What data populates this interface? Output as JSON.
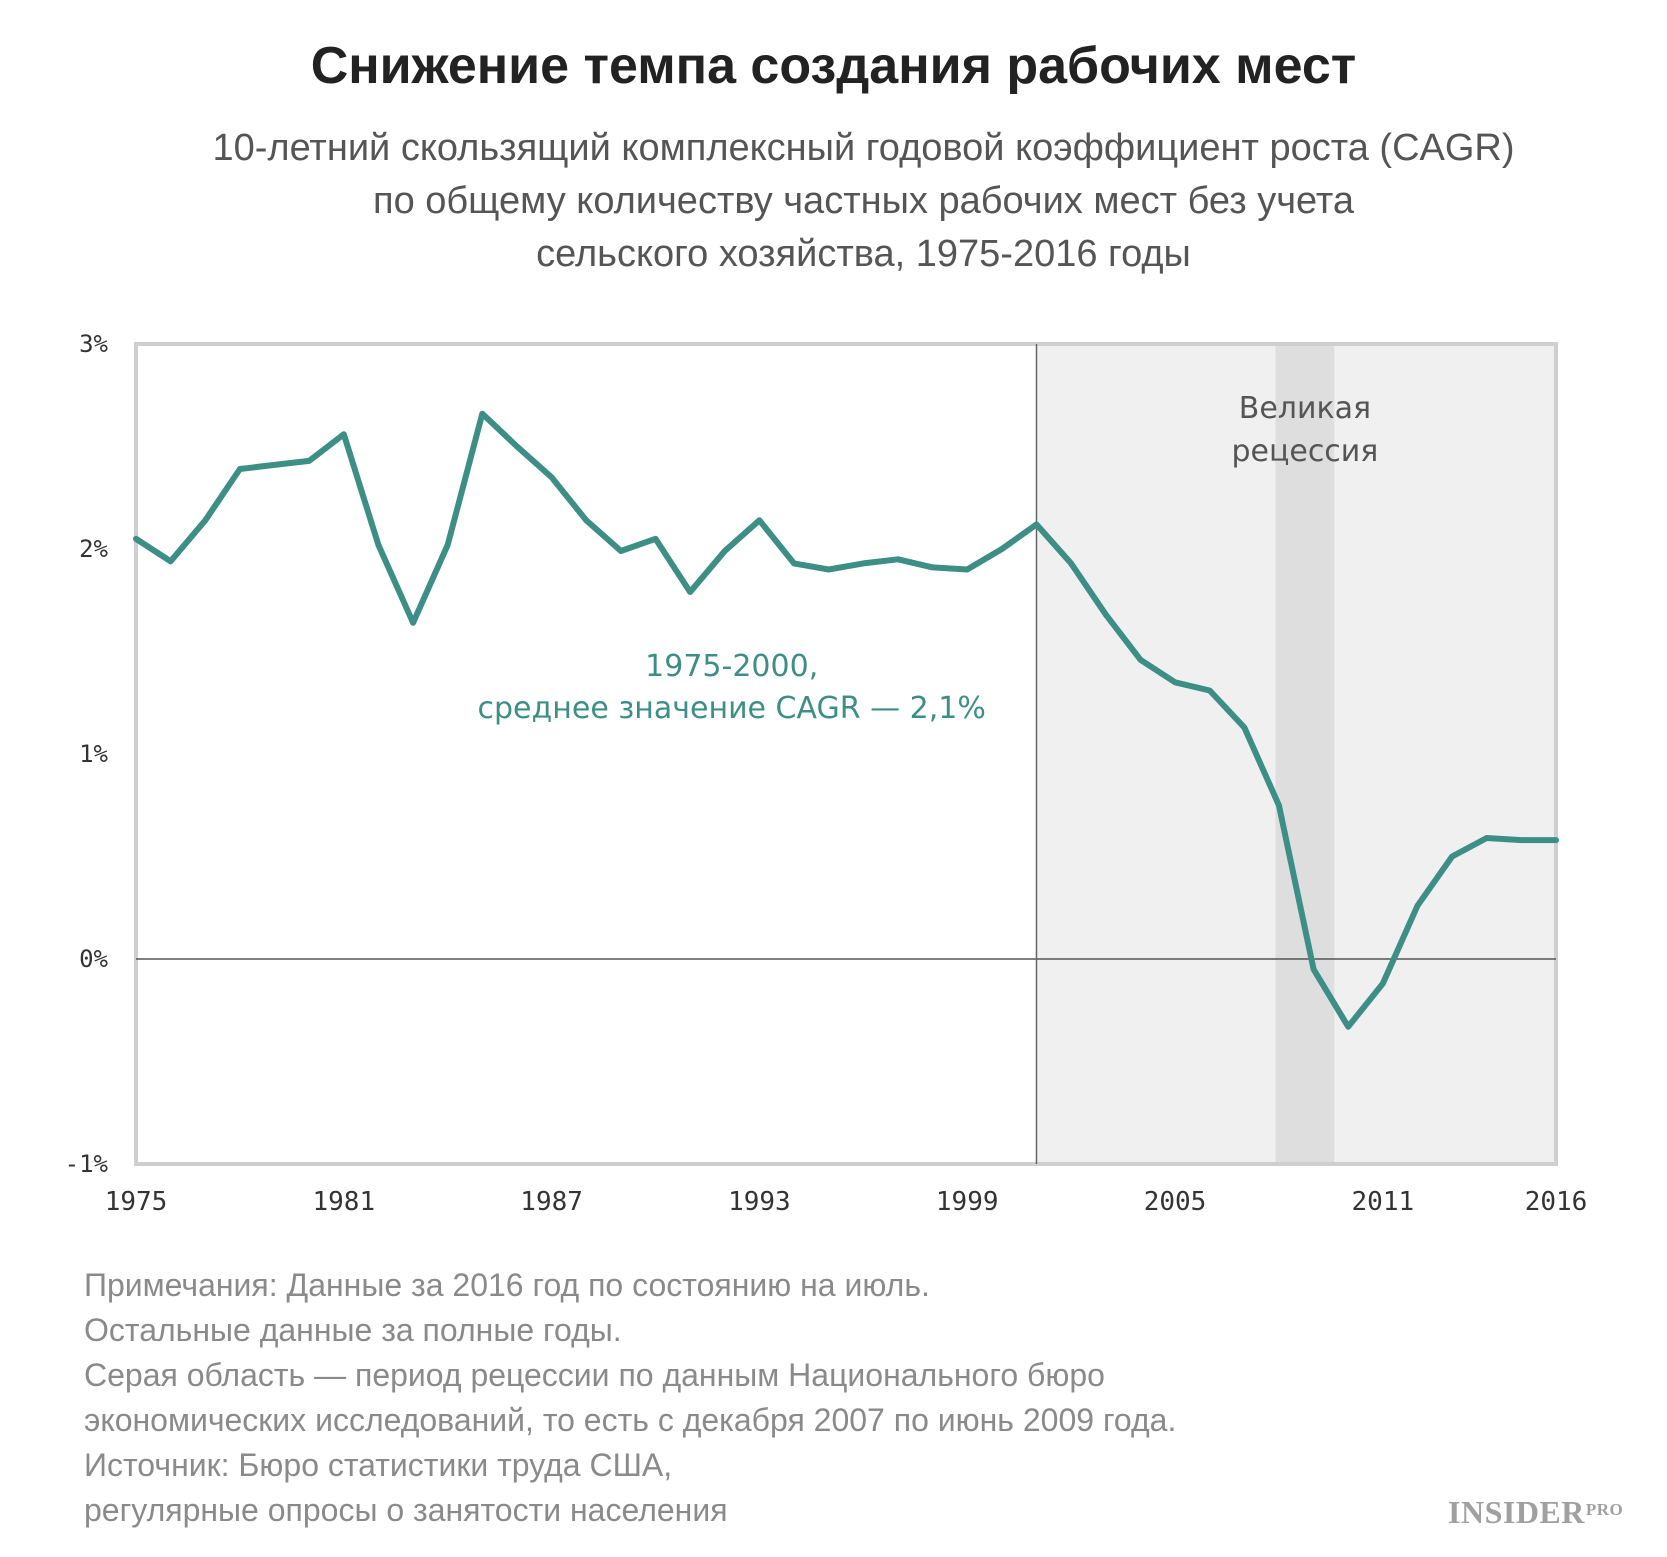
{
  "title": "Снижение темпа создания рабочих мест",
  "subtitle_lines": [
    "10-летний скользящий комплексный годовой коэффициент роста (CAGR)",
    "по общему количеству частных рабочих мест без учета",
    "сельского хозяйства, 1975-2016 годы"
  ],
  "notes": [
    "Примечания: Данные за 2016 год по состоянию на июль.",
    "Остальные данные за полные годы.",
    "Серая область — период рецессии по данным Национального бюро",
    "экономических исследований, то есть с декабря 2007 по июнь 2009 года.",
    "Источник: Бюро статистики труда США,",
    "регулярные опросы о занятости населения"
  ],
  "logo": {
    "main": "INSIDER",
    "suffix": "PRO"
  },
  "colors": {
    "line": "#3d8f86",
    "annotation": "#3d8f86",
    "shade_light": "#f0f0f0",
    "shade_dark": "#dedede",
    "frame": "#cfcfcf",
    "axis_text": "#333333"
  },
  "chart_data": {
    "type": "line",
    "title": "Снижение темпа создания рабочих мест",
    "xlabel": "",
    "ylabel": "",
    "xlim": [
      1975,
      2016
    ],
    "ylim": [
      -1,
      3
    ],
    "x_ticks": [
      1975,
      1981,
      1987,
      1993,
      1999,
      2005,
      2011,
      2016
    ],
    "y_ticks": [
      {
        "value": 3,
        "label": "3%"
      },
      {
        "value": 2,
        "label": "2%"
      },
      {
        "value": 1,
        "label": "1%"
      },
      {
        "value": 0,
        "label": "0%"
      },
      {
        "value": -1,
        "label": "-1%"
      }
    ],
    "grid": false,
    "zero_line": true,
    "shaded_regions": [
      {
        "from": 2001,
        "to": 2016,
        "shade": "light"
      },
      {
        "from": 2007.9,
        "to": 2009.6,
        "shade": "dark",
        "label_lines": [
          "Великая",
          "рецессия"
        ]
      }
    ],
    "vertical_line": 2001,
    "annotation": {
      "lines": [
        "1975-2000,",
        "среднее значение CAGR — 2,1%"
      ],
      "x": 1992.2,
      "y": 1.38
    },
    "series": [
      {
        "x": [
          1975,
          1976,
          1977,
          1978,
          1979,
          1980,
          1981,
          1982,
          1983,
          1984,
          1985,
          1986,
          1987,
          1988,
          1989,
          1990,
          1991,
          1992,
          1993,
          1994,
          1995,
          1996,
          1997,
          1998,
          1999,
          2000,
          2001,
          2002,
          2003,
          2004,
          2005,
          2006,
          2007,
          2008,
          2009,
          2010,
          2011,
          2012,
          2013,
          2014,
          2015,
          2016
        ],
        "values": [
          2.05,
          1.94,
          2.14,
          2.39,
          2.41,
          2.43,
          2.56,
          2.02,
          1.64,
          2.02,
          2.66,
          2.5,
          2.35,
          2.14,
          1.99,
          2.05,
          1.79,
          1.99,
          2.14,
          1.93,
          1.9,
          1.93,
          1.95,
          1.91,
          1.9,
          2.0,
          2.12,
          1.93,
          1.68,
          1.46,
          1.35,
          1.31,
          1.13,
          0.75,
          -0.05,
          -0.33,
          -0.12,
          0.26,
          0.5,
          0.59,
          0.58,
          0.58
        ]
      }
    ]
  }
}
